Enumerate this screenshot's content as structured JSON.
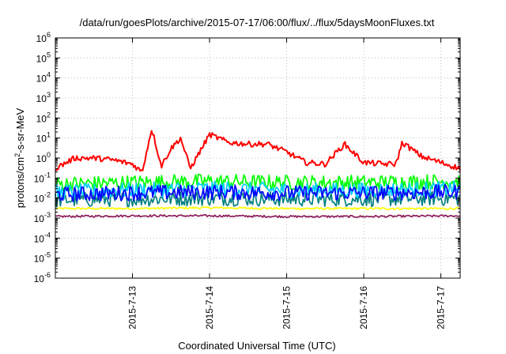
{
  "chart_data": {
    "type": "line",
    "title": "/data/run/goesPlots/archive/2015-07-17/06:00/flux/../flux/5daysMoonFluxes.txt",
    "xlabel": "Coordinated Universal Time (UTC)",
    "ylabel": "protons/cm2-s-sr-MeV",
    "yscale": "log",
    "ylim": [
      1e-06,
      1000000
    ],
    "xlim": [
      "2015-07-12T00:00",
      "2015-07-17T06:00"
    ],
    "grid": true,
    "legend": "none",
    "y_ticks": [
      {
        "value": 1e-06,
        "base": "10",
        "exp": "-6"
      },
      {
        "value": 1e-05,
        "base": "10",
        "exp": "-5"
      },
      {
        "value": 0.0001,
        "base": "10",
        "exp": "-4"
      },
      {
        "value": 0.001,
        "base": "10",
        "exp": "-3"
      },
      {
        "value": 0.01,
        "base": "10",
        "exp": "-2"
      },
      {
        "value": 0.1,
        "base": "10",
        "exp": "-1"
      },
      {
        "value": 1,
        "base": "10",
        "exp": "0"
      },
      {
        "value": 10,
        "base": "10",
        "exp": "1"
      },
      {
        "value": 100,
        "base": "10",
        "exp": "2"
      },
      {
        "value": 1000,
        "base": "10",
        "exp": "3"
      },
      {
        "value": 10000,
        "base": "10",
        "exp": "4"
      },
      {
        "value": 100000,
        "base": "10",
        "exp": "5"
      },
      {
        "value": 1000000,
        "base": "10",
        "exp": "6"
      }
    ],
    "x_ticks": [
      "2015-7-13",
      "2015-7-14",
      "2015-7-15",
      "2015-7-16",
      "2015-7-17"
    ],
    "series": [
      {
        "color": "#ff0000",
        "x": [
          "2015-07-12T00:00",
          "2015-07-12T06:00",
          "2015-07-12T12:00",
          "2015-07-12T18:00",
          "2015-07-13T00:00",
          "2015-07-13T03:00",
          "2015-07-13T06:00",
          "2015-07-13T09:00",
          "2015-07-13T12:00",
          "2015-07-13T15:00",
          "2015-07-13T18:00",
          "2015-07-14T00:00",
          "2015-07-14T06:00",
          "2015-07-14T12:00",
          "2015-07-14T18:00",
          "2015-07-15T00:00",
          "2015-07-15T06:00",
          "2015-07-15T12:00",
          "2015-07-15T18:00",
          "2015-07-16T00:00",
          "2015-07-16T06:00",
          "2015-07-16T10:00",
          "2015-07-16T12:00",
          "2015-07-16T18:00",
          "2015-07-17T00:00",
          "2015-07-17T06:00"
        ],
        "y": [
          0.3,
          1.0,
          1.0,
          0.8,
          0.5,
          0.2,
          30,
          0.4,
          3.0,
          10,
          0.3,
          15,
          6,
          5,
          5,
          2,
          0.6,
          0.5,
          5,
          0.6,
          0.5,
          0.5,
          6,
          1.2,
          0.6,
          0.3
        ]
      },
      {
        "color": "#00ff00",
        "x": [
          "2015-07-12T00:00",
          "2015-07-13T00:00",
          "2015-07-14T00:00",
          "2015-07-15T00:00",
          "2015-07-16T00:00",
          "2015-07-17T06:00"
        ],
        "y": [
          0.05,
          0.06,
          0.07,
          0.06,
          0.06,
          0.07
        ]
      },
      {
        "color": "#00ccff",
        "x": [
          "2015-07-12T00:00",
          "2015-07-13T00:00",
          "2015-07-14T00:00",
          "2015-07-15T00:00",
          "2015-07-16T00:00",
          "2015-07-17T06:00"
        ],
        "y": [
          0.02,
          0.025,
          0.03,
          0.025,
          0.025,
          0.03
        ]
      },
      {
        "color": "#0000ff",
        "x": [
          "2015-07-12T00:00",
          "2015-07-13T00:00",
          "2015-07-14T00:00",
          "2015-07-15T00:00",
          "2015-07-16T00:00",
          "2015-07-17T06:00"
        ],
        "y": [
          0.015,
          0.018,
          0.02,
          0.018,
          0.018,
          0.02
        ]
      },
      {
        "color": "#008080",
        "x": [
          "2015-07-12T00:00",
          "2015-07-13T00:00",
          "2015-07-14T00:00",
          "2015-07-15T00:00",
          "2015-07-16T00:00",
          "2015-07-17T06:00"
        ],
        "y": [
          0.008,
          0.009,
          0.01,
          0.009,
          0.009,
          0.01
        ]
      },
      {
        "color": "#ffff00",
        "x": [
          "2015-07-12T00:00",
          "2015-07-13T00:00",
          "2015-07-14T00:00",
          "2015-07-15T00:00",
          "2015-07-16T00:00",
          "2015-07-17T06:00"
        ],
        "y": [
          0.003,
          0.003,
          0.0033,
          0.003,
          0.003,
          0.003
        ]
      },
      {
        "color": "#8b1a5a",
        "x": [
          "2015-07-12T00:00",
          "2015-07-13T00:00",
          "2015-07-14T00:00",
          "2015-07-15T00:00",
          "2015-07-16T00:00",
          "2015-07-17T06:00"
        ],
        "y": [
          0.0012,
          0.0013,
          0.0013,
          0.0012,
          0.0012,
          0.0013
        ]
      }
    ]
  }
}
